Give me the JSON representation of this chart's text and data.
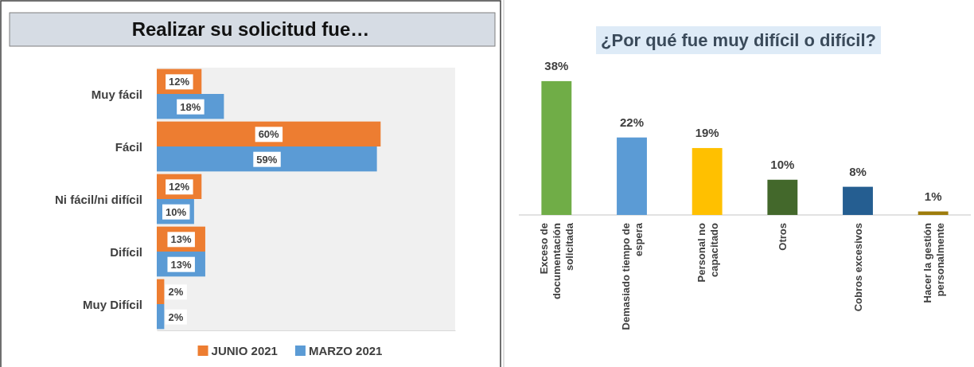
{
  "chart_data": [
    {
      "type": "bar",
      "orientation": "horizontal",
      "title": "Realizar su solicitud fue…",
      "categories": [
        "Muy fácil",
        "Fácil",
        "Ni fácil/ni difícil",
        "Difícil",
        "Muy Difícil"
      ],
      "series": [
        {
          "name": "JUNIO 2021",
          "color": "#ed7d31",
          "values": [
            12,
            60,
            12,
            13,
            2
          ],
          "value_labels": [
            "12%",
            "60%",
            "12%",
            "13%",
            "2%"
          ]
        },
        {
          "name": "MARZO 2021",
          "color": "#5b9bd5",
          "values": [
            18,
            59,
            10,
            13,
            2
          ],
          "value_labels": [
            "18%",
            "59%",
            "10%",
            "13%",
            "2%"
          ]
        }
      ],
      "tick_labels": "y",
      "legend": "bottom"
    },
    {
      "type": "bar",
      "title": "¿Por qué fue muy difícil o difícil?",
      "categories": [
        "Exceso de documentación solicitada",
        "Demasiado tiempo de espera",
        "Personal no capacitado",
        "Otros",
        "Cobros excesivos",
        "Hacer la gestión personalmente"
      ],
      "values": [
        38,
        22,
        19,
        10,
        8,
        1
      ],
      "value_labels": [
        "38%",
        "22%",
        "19%",
        "10%",
        "8%",
        "1%"
      ],
      "colors": [
        "#70ad47",
        "#5b9bd5",
        "#ffc000",
        "#43682b",
        "#255e91",
        "#9e7c0c"
      ],
      "tick_labels": "x"
    }
  ]
}
